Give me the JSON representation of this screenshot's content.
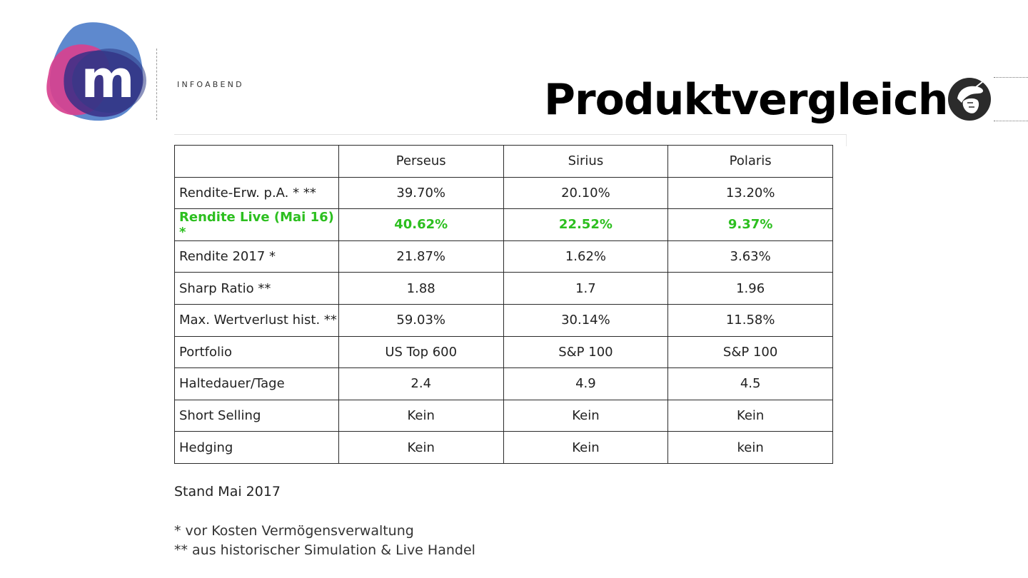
{
  "header": {
    "subtitle": "INFOABEND",
    "title": "Produktvergleich",
    "logo_letter": "m"
  },
  "colors": {
    "highlight": "#2cbf1f",
    "logo_blue": "#4c7cc9",
    "logo_pink": "#d8418f",
    "logo_purple": "#4a3a93",
    "logo_navy": "#2e3b87"
  },
  "icons": {
    "brand": "m-logo",
    "title": "helmet-head-icon"
  },
  "table": {
    "headers": [
      "",
      "Perseus",
      "Sirius",
      "Polaris"
    ],
    "rows": [
      {
        "label": "Rendite-Erw. p.A. * **",
        "values": [
          "39.70%",
          "20.10%",
          "13.20%"
        ]
      },
      {
        "label": "Rendite Live (Mai 16) *",
        "values": [
          "40.62%",
          "22.52%",
          "9.37%"
        ],
        "highlight": true
      },
      {
        "label": "Rendite 2017 *",
        "values": [
          "21.87%",
          "1.62%",
          "3.63%"
        ]
      },
      {
        "label": "Sharp Ratio **",
        "values": [
          "1.88",
          "1.7",
          "1.96"
        ]
      },
      {
        "label": "Max. Wertverlust hist. **",
        "values": [
          "59.03%",
          "30.14%",
          "11.58%"
        ]
      },
      {
        "label": "Portfolio",
        "values": [
          "US Top 600",
          "S&P 100",
          "S&P 100"
        ]
      },
      {
        "label": "Haltedauer/Tage",
        "values": [
          "2.4",
          "4.9",
          "4.5"
        ]
      },
      {
        "label": "Short Selling",
        "values": [
          "Kein",
          "Kein",
          "Kein"
        ]
      },
      {
        "label": "Hedging",
        "values": [
          "Kein",
          "Kein",
          "kein"
        ]
      }
    ]
  },
  "footer": {
    "stand": "Stand Mai 2017",
    "note1": "* vor Kosten Vermögensverwaltung",
    "note2": "** aus historischer Simulation & Live Handel"
  }
}
